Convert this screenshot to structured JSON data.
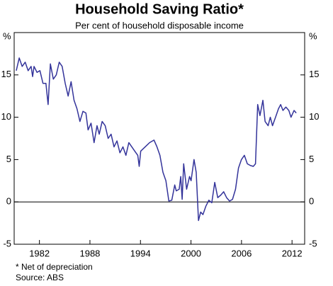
{
  "chart_data": {
    "type": "line",
    "title": "Household Saving Ratio*",
    "subtitle": "Per cent of household disposable income",
    "ylabel": "%",
    "footnote": "*   Net of depreciation",
    "source": "Source: ABS",
    "xlim": [
      1979,
      2013.5
    ],
    "xticks": [
      1982,
      1988,
      1994,
      2000,
      2006,
      2012
    ],
    "ylim": [
      -5,
      20
    ],
    "yticks": [
      -5,
      0,
      5,
      10,
      15
    ],
    "grid": false,
    "series": [
      {
        "name": "Household saving ratio",
        "color": "#33339a",
        "x": [
          1979.25,
          1979.6,
          1979.95,
          1980.31,
          1980.66,
          1981.01,
          1981.19,
          1981.36,
          1981.71,
          1982.06,
          1982.42,
          1982.77,
          1983.03,
          1983.3,
          1983.65,
          1984.0,
          1984.35,
          1984.7,
          1985.06,
          1985.41,
          1985.76,
          1986.11,
          1986.46,
          1986.81,
          1987.17,
          1987.52,
          1987.78,
          1988.13,
          1988.49,
          1988.84,
          1989.1,
          1989.45,
          1989.81,
          1990.16,
          1990.51,
          1990.86,
          1991.21,
          1991.56,
          1991.92,
          1992.27,
          1992.62,
          1992.97,
          1993.32,
          1993.68,
          1993.85,
          1994.03,
          1994.56,
          1995.08,
          1995.61,
          1995.96,
          1996.31,
          1996.67,
          1997.02,
          1997.37,
          1997.72,
          1998.07,
          1998.25,
          1998.6,
          1998.78,
          1998.95,
          1999.13,
          1999.48,
          1999.83,
          2000.01,
          2000.36,
          2000.62,
          2000.89,
          2001.15,
          2001.42,
          2001.77,
          2002.12,
          2002.47,
          2002.82,
          2003.18,
          2003.53,
          2003.88,
          2004.23,
          2004.58,
          2004.93,
          2005.29,
          2005.64,
          2005.99,
          2006.34,
          2006.69,
          2007.05,
          2007.4,
          2007.66,
          2007.92,
          2008.19,
          2008.54,
          2008.8,
          2009.16,
          2009.42,
          2009.68,
          2010.04,
          2010.39,
          2010.65,
          2010.92,
          2011.27,
          2011.62,
          2011.88,
          2012.24,
          2012.5
        ],
        "values": [
          15.5,
          17,
          16,
          16.5,
          15.5,
          16,
          14.8,
          16,
          15.3,
          15.5,
          14,
          14,
          11.5,
          16.3,
          14.5,
          15,
          16.5,
          16,
          14,
          12.5,
          14.2,
          12,
          11,
          9.5,
          10.7,
          10.5,
          8.5,
          9.3,
          7,
          9,
          8,
          9.5,
          9,
          7.5,
          8,
          6.5,
          7.2,
          5.8,
          6.5,
          5.5,
          7,
          6.5,
          6,
          5.5,
          4.2,
          6,
          6.5,
          7,
          7.3,
          6.5,
          5.5,
          3.5,
          2.5,
          0.1,
          0.2,
          2,
          1.3,
          1.5,
          3,
          0.3,
          4.5,
          1.5,
          3,
          2.5,
          5,
          3.5,
          -2.2,
          -1.2,
          -1.5,
          -0.5,
          0.2,
          -0.1,
          2.3,
          0.5,
          0.8,
          1.2,
          0.5,
          0.1,
          0.3,
          1.5,
          4,
          5,
          5.5,
          4.5,
          4.3,
          4.2,
          4.5,
          11.5,
          10.2,
          12,
          9.5,
          9,
          10,
          9,
          10,
          11,
          11.5,
          10.8,
          11.2,
          10.8,
          10,
          10.8,
          10.5
        ]
      }
    ]
  }
}
